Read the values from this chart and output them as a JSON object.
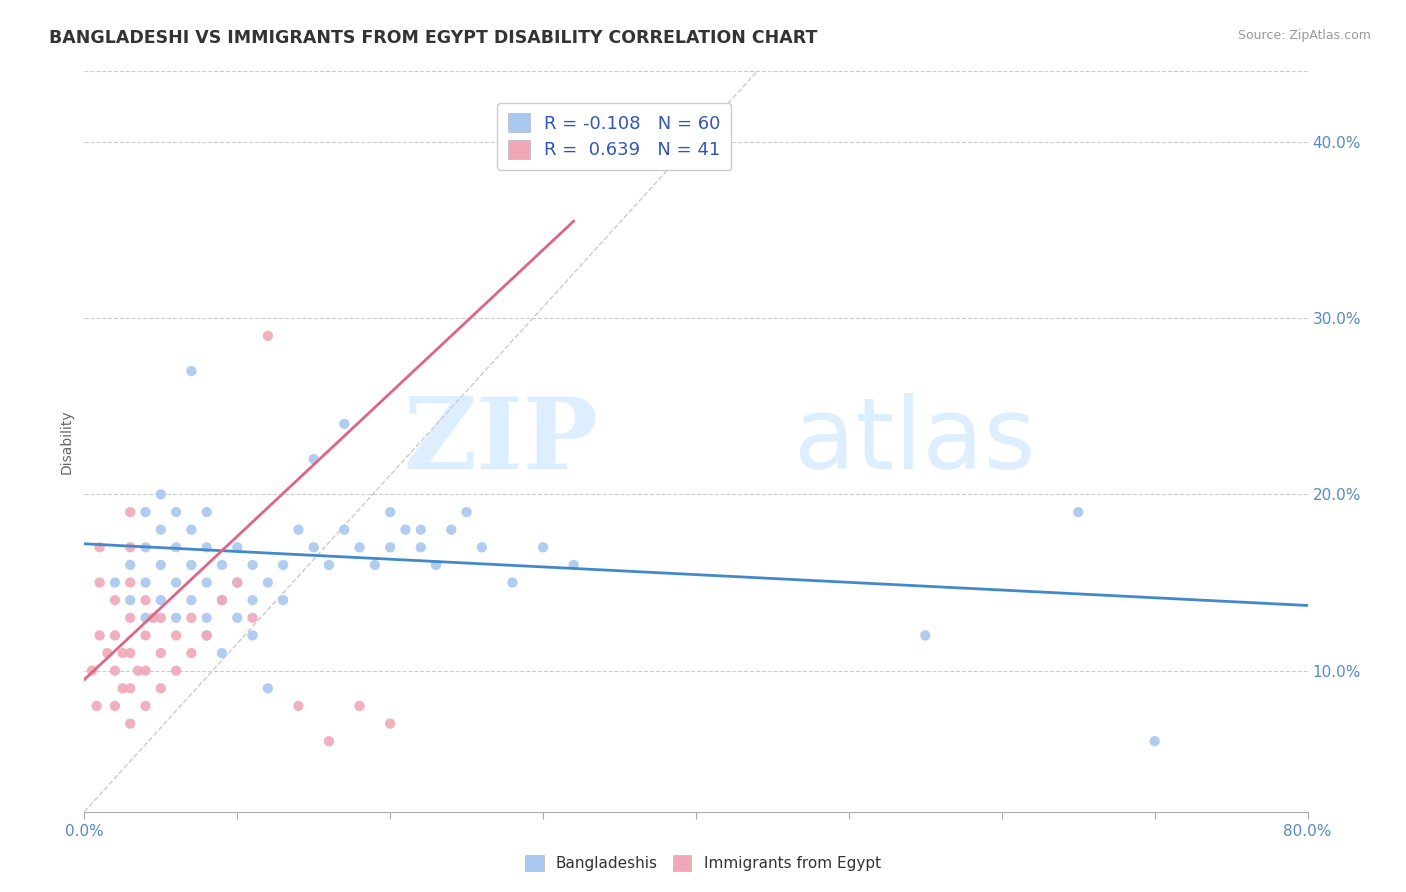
{
  "title": "BANGLADESHI VS IMMIGRANTS FROM EGYPT DISABILITY CORRELATION CHART",
  "source": "Source: ZipAtlas.com",
  "ylabel": "Disability",
  "xlim": [
    0.0,
    0.8
  ],
  "ylim": [
    0.02,
    0.44
  ],
  "y_ticks_right": [
    0.1,
    0.2,
    0.3,
    0.4
  ],
  "y_tick_labels_right": [
    "10.0%",
    "20.0%",
    "30.0%",
    "40.0%"
  ],
  "r1": -0.108,
  "n1": 60,
  "r2": 0.639,
  "n2": 41,
  "color_blue": "#a8c8f0",
  "color_pink": "#f0a8b8",
  "color_blue_line": "#4488cc",
  "color_pink_line": "#dd6688",
  "watermark_zip": "ZIP",
  "watermark_atlas": "atlas",
  "watermark_color": "#ddeeff",
  "blue_scatter_x": [
    0.02,
    0.03,
    0.03,
    0.04,
    0.04,
    0.04,
    0.04,
    0.05,
    0.05,
    0.05,
    0.05,
    0.06,
    0.06,
    0.06,
    0.06,
    0.07,
    0.07,
    0.07,
    0.08,
    0.08,
    0.08,
    0.08,
    0.09,
    0.09,
    0.1,
    0.1,
    0.11,
    0.11,
    0.12,
    0.13,
    0.13,
    0.14,
    0.15,
    0.16,
    0.17,
    0.18,
    0.19,
    0.2,
    0.21,
    0.22,
    0.23,
    0.24,
    0.26,
    0.28,
    0.3,
    0.32,
    0.15,
    0.17,
    0.2,
    0.22,
    0.25,
    0.07,
    0.08,
    0.09,
    0.1,
    0.11,
    0.12,
    0.55,
    0.65,
    0.7
  ],
  "blue_scatter_y": [
    0.15,
    0.14,
    0.16,
    0.13,
    0.15,
    0.17,
    0.19,
    0.14,
    0.16,
    0.18,
    0.2,
    0.13,
    0.15,
    0.17,
    0.19,
    0.14,
    0.16,
    0.18,
    0.13,
    0.15,
    0.17,
    0.19,
    0.14,
    0.16,
    0.15,
    0.17,
    0.14,
    0.16,
    0.15,
    0.14,
    0.16,
    0.18,
    0.17,
    0.16,
    0.18,
    0.17,
    0.16,
    0.17,
    0.18,
    0.17,
    0.16,
    0.18,
    0.17,
    0.15,
    0.17,
    0.16,
    0.22,
    0.24,
    0.19,
    0.18,
    0.19,
    0.27,
    0.12,
    0.11,
    0.13,
    0.12,
    0.09,
    0.12,
    0.19,
    0.06
  ],
  "pink_scatter_x": [
    0.005,
    0.008,
    0.01,
    0.01,
    0.01,
    0.015,
    0.02,
    0.02,
    0.02,
    0.02,
    0.025,
    0.025,
    0.03,
    0.03,
    0.03,
    0.03,
    0.03,
    0.03,
    0.03,
    0.035,
    0.04,
    0.04,
    0.04,
    0.04,
    0.045,
    0.05,
    0.05,
    0.05,
    0.06,
    0.06,
    0.07,
    0.07,
    0.08,
    0.09,
    0.1,
    0.11,
    0.12,
    0.14,
    0.16,
    0.18,
    0.2
  ],
  "pink_scatter_y": [
    0.1,
    0.08,
    0.12,
    0.15,
    0.17,
    0.11,
    0.08,
    0.1,
    0.12,
    0.14,
    0.09,
    0.11,
    0.07,
    0.09,
    0.11,
    0.13,
    0.15,
    0.17,
    0.19,
    0.1,
    0.08,
    0.1,
    0.12,
    0.14,
    0.13,
    0.09,
    0.11,
    0.13,
    0.1,
    0.12,
    0.11,
    0.13,
    0.12,
    0.14,
    0.15,
    0.13,
    0.29,
    0.08,
    0.06,
    0.08,
    0.07
  ],
  "blue_line_x": [
    0.0,
    0.8
  ],
  "blue_line_y": [
    0.172,
    0.137
  ],
  "pink_line_x": [
    0.0,
    0.32
  ],
  "pink_line_y": [
    0.095,
    0.355
  ],
  "diag_line_x": [
    0.0,
    0.44
  ],
  "diag_line_y": [
    0.02,
    0.44
  ]
}
